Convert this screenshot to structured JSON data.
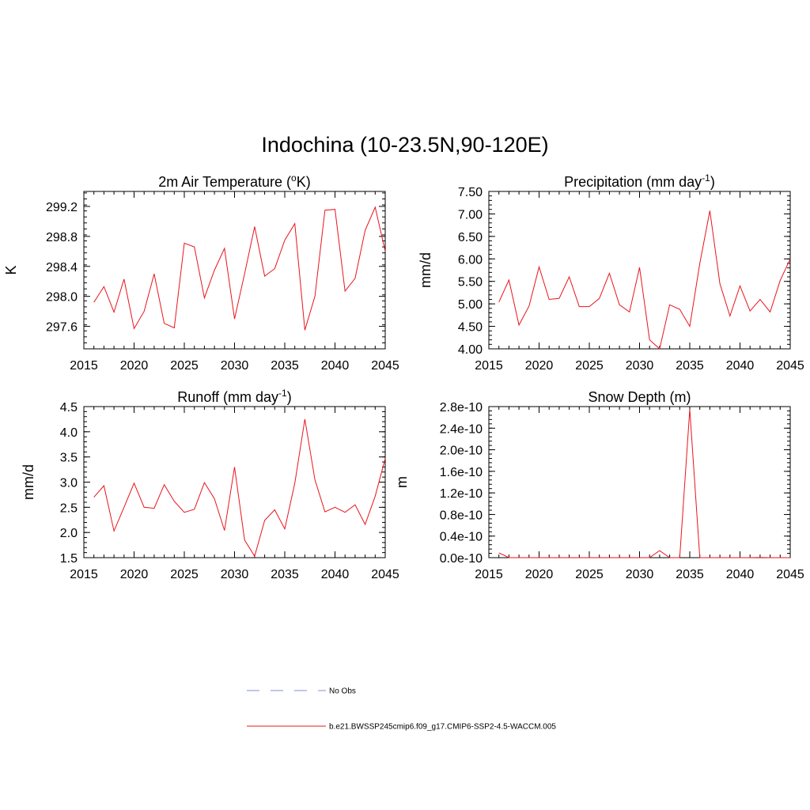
{
  "title": "Indochina (10-23.5N,90-120E)",
  "colors": {
    "series": "#e8141c",
    "obs": "#9aa3d8",
    "axis": "#000000"
  },
  "legend": [
    {
      "label": "No Obs",
      "style": "dashed",
      "color": "#9aa3d8"
    },
    {
      "label": "b.e21.BWSSP245cmip6.f09_g17.CMIP6-SSP2-4.5-WACCM.005",
      "style": "solid",
      "color": "#e8141c"
    }
  ],
  "chart_data": [
    {
      "type": "line",
      "title_main": "2m Air Temperature (",
      "title_sup": "o",
      "title_end": "K)",
      "ylabel": "K",
      "xlim": [
        2015,
        2045
      ],
      "ylim": [
        297.3,
        299.4
      ],
      "xticks": [
        "2015",
        "2020",
        "2025",
        "2030",
        "2035",
        "2040",
        "2045"
      ],
      "yticks": [
        [
          "297.6",
          297.6
        ],
        [
          "298.0",
          298.0
        ],
        [
          "298.4",
          298.4
        ],
        [
          "298.8",
          298.8
        ],
        [
          "299.2",
          299.2
        ]
      ],
      "x": [
        2016,
        2017,
        2018,
        2019,
        2020,
        2021,
        2022,
        2023,
        2024,
        2025,
        2026,
        2027,
        2028,
        2029,
        2030,
        2031,
        2032,
        2033,
        2034,
        2035,
        2036,
        2037,
        2038,
        2039,
        2040,
        2041,
        2042,
        2043,
        2044,
        2045
      ],
      "values": [
        297.92,
        298.13,
        297.79,
        298.23,
        297.57,
        297.8,
        298.3,
        297.64,
        297.58,
        298.71,
        298.66,
        297.98,
        298.35,
        298.64,
        297.7,
        298.3,
        298.93,
        298.27,
        298.37,
        298.75,
        298.97,
        297.55,
        298.0,
        299.15,
        299.16,
        298.07,
        298.24,
        298.88,
        299.19,
        298.6
      ],
      "series_name": "b.e21.BWSSP245cmip6.f09_g17.CMIP6-SSP2-4.5-WACCM.005"
    },
    {
      "type": "line",
      "title_main": "Precipitation (mm day",
      "title_sup": "-1",
      "title_end": ")",
      "ylabel": "mm/d",
      "xlim": [
        2015,
        2045
      ],
      "ylim": [
        4.0,
        7.5
      ],
      "xticks": [
        "2015",
        "2020",
        "2025",
        "2030",
        "2035",
        "2040",
        "2045"
      ],
      "yticks": [
        [
          "4.00",
          4.0
        ],
        [
          "4.50",
          4.5
        ],
        [
          "5.00",
          5.0
        ],
        [
          "5.50",
          5.5
        ],
        [
          "6.00",
          6.0
        ],
        [
          "6.50",
          6.5
        ],
        [
          "7.00",
          7.0
        ],
        [
          "7.50",
          7.5
        ]
      ],
      "x": [
        2016,
        2017,
        2018,
        2019,
        2020,
        2021,
        2022,
        2023,
        2024,
        2025,
        2026,
        2027,
        2028,
        2029,
        2030,
        2031,
        2032,
        2033,
        2034,
        2035,
        2036,
        2037,
        2038,
        2039,
        2040,
        2041,
        2042,
        2043,
        2044,
        2045
      ],
      "values": [
        5.04,
        5.53,
        4.53,
        4.95,
        5.82,
        5.1,
        5.12,
        5.6,
        4.94,
        4.94,
        5.12,
        5.68,
        4.98,
        4.82,
        5.81,
        4.2,
        4.0,
        4.98,
        4.88,
        4.5,
        5.9,
        7.07,
        5.45,
        4.73,
        5.4,
        4.84,
        5.1,
        4.82,
        5.52,
        6.0
      ],
      "series_name": "b.e21.BWSSP245cmip6.f09_g17.CMIP6-SSP2-4.5-WACCM.005"
    },
    {
      "type": "line",
      "title_main": "Runoff (mm day",
      "title_sup": "-1",
      "title_end": ")",
      "ylabel": "mm/d",
      "xlim": [
        2015,
        2045
      ],
      "ylim": [
        1.5,
        4.5
      ],
      "xticks": [
        "2015",
        "2020",
        "2025",
        "2030",
        "2035",
        "2040",
        "2045"
      ],
      "yticks": [
        [
          "1.5",
          1.5
        ],
        [
          "2.0",
          2.0
        ],
        [
          "2.5",
          2.5
        ],
        [
          "3.0",
          3.0
        ],
        [
          "3.5",
          3.5
        ],
        [
          "4.0",
          4.0
        ],
        [
          "4.5",
          4.5
        ]
      ],
      "x": [
        2016,
        2017,
        2018,
        2019,
        2020,
        2021,
        2022,
        2023,
        2024,
        2025,
        2026,
        2027,
        2028,
        2029,
        2030,
        2031,
        2032,
        2033,
        2034,
        2035,
        2036,
        2037,
        2038,
        2039,
        2040,
        2041,
        2042,
        2043,
        2044,
        2045
      ],
      "values": [
        2.7,
        2.93,
        2.03,
        2.5,
        2.98,
        2.5,
        2.48,
        2.95,
        2.62,
        2.4,
        2.46,
        2.99,
        2.67,
        2.04,
        3.3,
        1.85,
        1.53,
        2.24,
        2.45,
        2.07,
        2.98,
        4.25,
        3.05,
        2.41,
        2.5,
        2.4,
        2.55,
        2.16,
        2.72,
        3.47
      ],
      "series_name": "b.e21.BWSSP245cmip6.f09_g17.CMIP6-SSP2-4.5-WACCM.005"
    },
    {
      "type": "line",
      "title_main": "Snow Depth (m)",
      "title_sup": "",
      "title_end": "",
      "ylabel": "m",
      "xlim": [
        2015,
        2045
      ],
      "ylim": [
        0,
        2.8e-10
      ],
      "xticks": [
        "2015",
        "2020",
        "2025",
        "2030",
        "2035",
        "2040",
        "2045"
      ],
      "yticks": [
        [
          "0.0e-10",
          0
        ],
        [
          "0.4e-10",
          4e-11
        ],
        [
          "0.8e-10",
          8e-11
        ],
        [
          "1.2e-10",
          1.2e-10
        ],
        [
          "1.6e-10",
          1.6e-10
        ],
        [
          "2.0e-10",
          2e-10
        ],
        [
          "2.4e-10",
          2.4e-10
        ],
        [
          "2.8e-10",
          2.8e-10
        ]
      ],
      "x": [
        2016,
        2017,
        2018,
        2019,
        2020,
        2021,
        2022,
        2023,
        2024,
        2025,
        2026,
        2027,
        2028,
        2029,
        2030,
        2031,
        2032,
        2033,
        2034,
        2035,
        2036,
        2037,
        2038,
        2039,
        2040,
        2041,
        2042,
        2043,
        2044,
        2045
      ],
      "values": [
        9e-12,
        0,
        0,
        0,
        0,
        0,
        0,
        0,
        0,
        0,
        0,
        0,
        0,
        0,
        0,
        0,
        1.3e-11,
        0,
        0,
        2.75e-10,
        0,
        0,
        0,
        0,
        0,
        0,
        4e-13,
        0,
        0,
        0
      ],
      "series_name": "b.e21.BWSSP245cmip6.f09_g17.CMIP6-SSP2-4.5-WACCM.005"
    }
  ]
}
